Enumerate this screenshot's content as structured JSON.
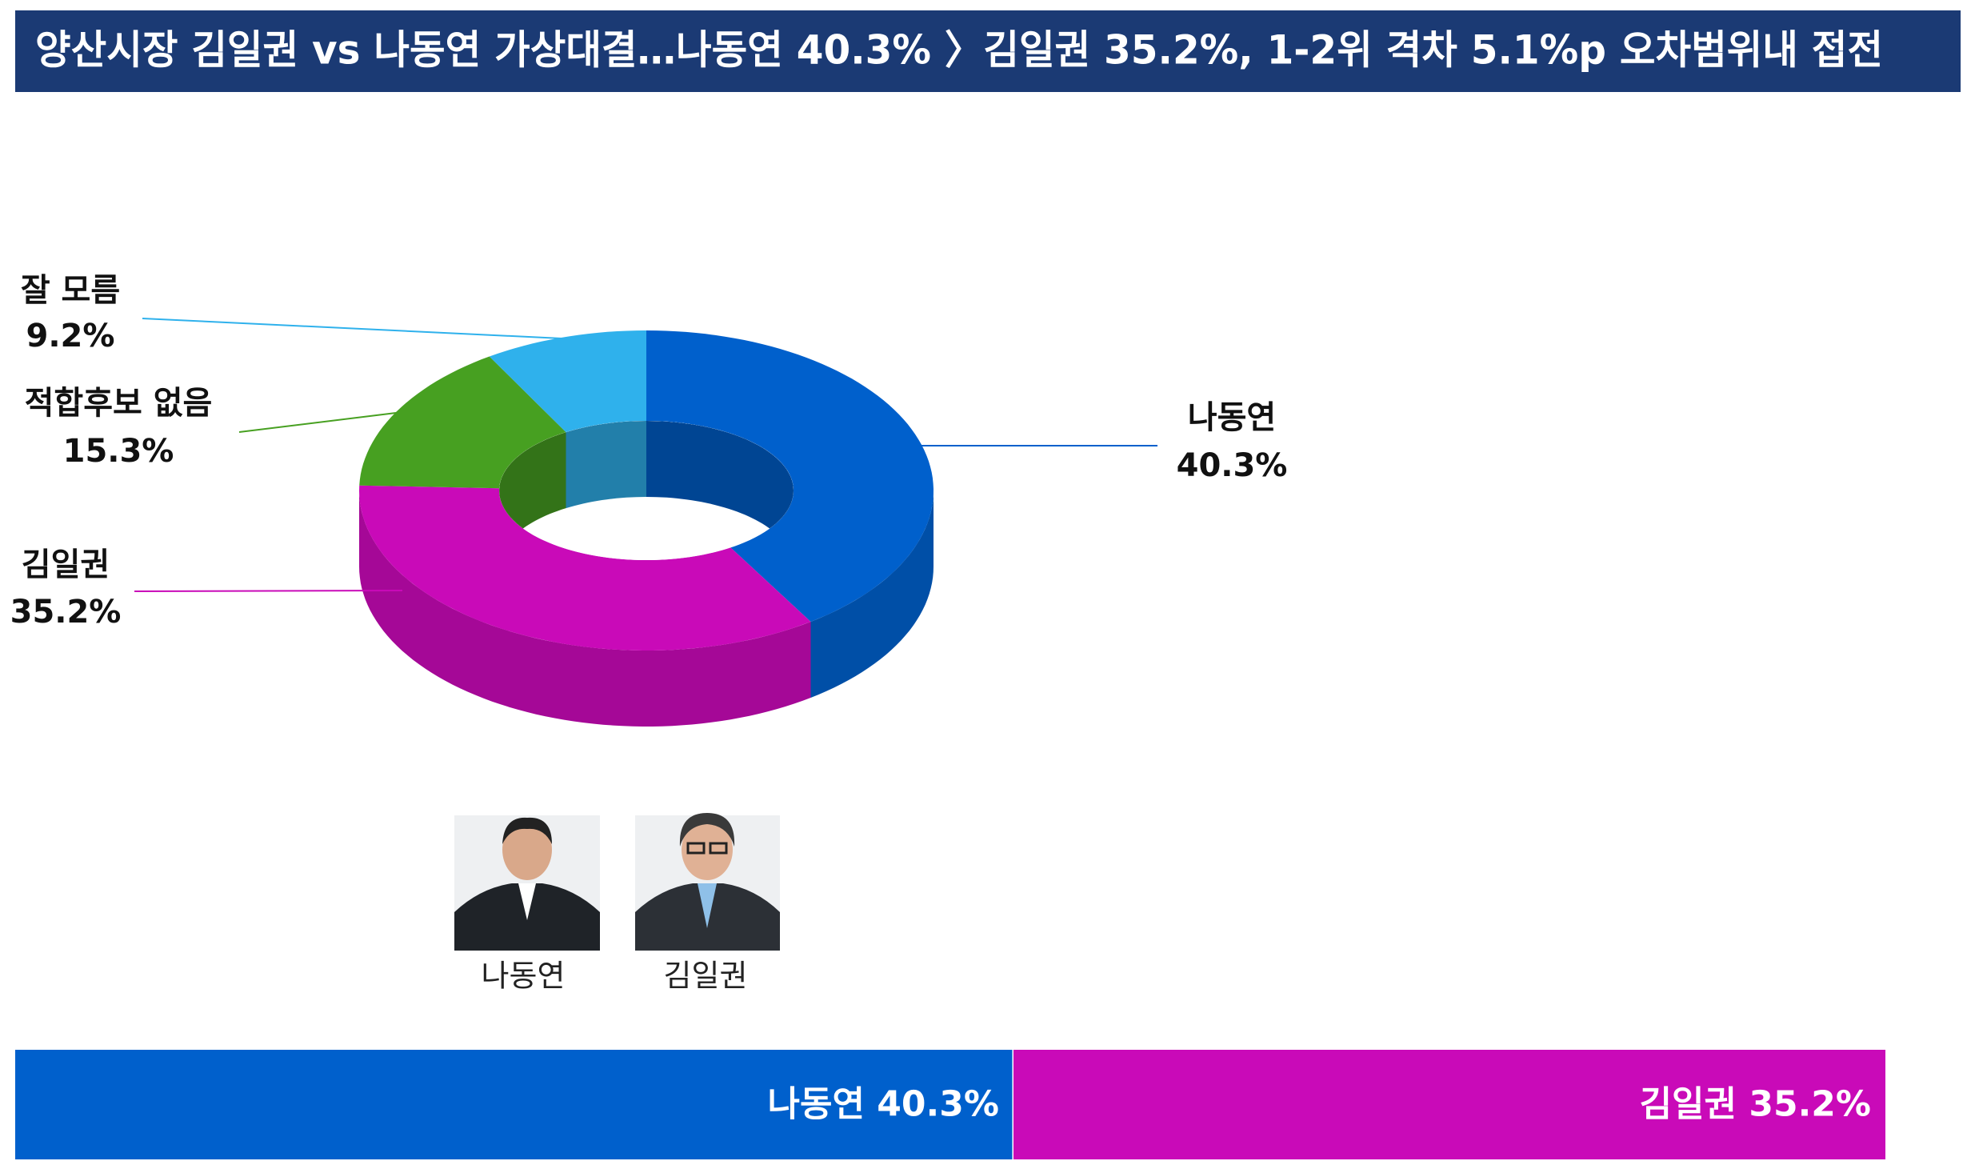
{
  "title": "양산시장 김일권 vs 나동연 가상대결…나동연 40.3% 〉김일권 35.2%, 1-2위 격차 5.1%p 오차범위내 접전",
  "chart_data": [
    {
      "type": "donut",
      "categories": [
        "나동연",
        "김일권",
        "적합후보 없음",
        "잘 모름"
      ],
      "values": [
        40.3,
        35.2,
        15.3,
        9.2
      ],
      "value_labels": [
        "40.3%",
        "35.2%",
        "15.3%",
        "9.2%"
      ],
      "colors": [
        "#0060cc",
        "#c90ab8",
        "#47a021",
        "#2fb1ec"
      ]
    },
    {
      "type": "stacked-bar",
      "series": [
        {
          "name": "나동연",
          "color": "#0060cc",
          "values": [
            40.3
          ],
          "value_labels": [
            "40.3%"
          ]
        },
        {
          "name": "김일권",
          "color": "#c90ab8",
          "values": [
            35.2
          ],
          "value_labels": [
            "35.2%"
          ]
        }
      ]
    }
  ],
  "photos": [
    {
      "caption": "나동연"
    },
    {
      "caption": "김일권"
    }
  ]
}
